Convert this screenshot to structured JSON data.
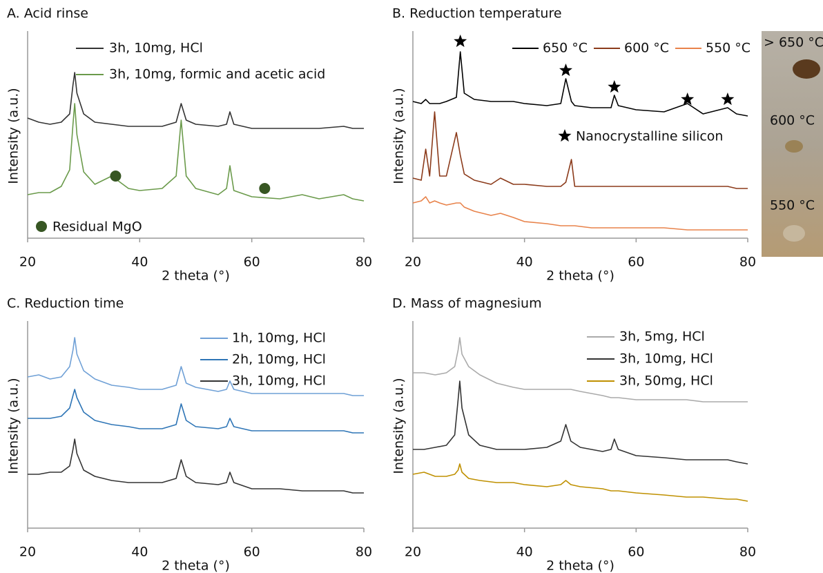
{
  "chart_data": [
    {
      "type": "line",
      "title": "A. Acid rinse",
      "x_label": "2 theta (°)",
      "y_label": "Intensity (a.u.)",
      "xlim": [
        20,
        80
      ],
      "xticks": [
        20,
        40,
        60,
        80
      ],
      "ylim": [
        0,
        100
      ],
      "legend": "top-center",
      "x": [
        20,
        22,
        24,
        26,
        27.5,
        28.1,
        28.4,
        28.8,
        30,
        32,
        35,
        38,
        40,
        44,
        46.5,
        47.4,
        48.3,
        50,
        54,
        55.5,
        56.1,
        56.8,
        60,
        65,
        69,
        72,
        76.4,
        78,
        80
      ],
      "series": [
        {
          "name": "3h, 10mg, HCl",
          "color": "#333333",
          "values": [
            58,
            56,
            55,
            56,
            60,
            74,
            80,
            70,
            60,
            56,
            55,
            54,
            54,
            54,
            56,
            65,
            57,
            55,
            54,
            55,
            61,
            55,
            53,
            53,
            53,
            53,
            54,
            53,
            53
          ]
        },
        {
          "name": "3h, 10mg, formic and acetic acid",
          "color": "#6a9a4a",
          "values": [
            21,
            22,
            22,
            25,
            33,
            55,
            65,
            50,
            32,
            26,
            30,
            24,
            23,
            24,
            30,
            57,
            30,
            24,
            21,
            24,
            35,
            23,
            20,
            19,
            21,
            19,
            21,
            19,
            18
          ]
        }
      ],
      "markers": {
        "label": "Residual MgO",
        "shape": "circle",
        "color": "#375623",
        "x": [
          35.7,
          62.3
        ],
        "y": [
          30,
          24
        ]
      }
    },
    {
      "type": "line",
      "title": "B. Reduction temperature",
      "x_label": "2 theta (°)",
      "y_label": "Intensity (a.u.)",
      "xlim": [
        20,
        80
      ],
      "xticks": [
        20,
        40,
        60,
        80
      ],
      "ylim": [
        0,
        100
      ],
      "legend": "top-right",
      "x": [
        20,
        21.5,
        22.3,
        23,
        23.9,
        24.8,
        26,
        27.8,
        28.5,
        29.2,
        31,
        34,
        35.7,
        38,
        40,
        44,
        46.5,
        47.4,
        48.4,
        49,
        52,
        55.5,
        56.1,
        56.8,
        60,
        65,
        69.2,
        72,
        76.4,
        78,
        80
      ],
      "series": [
        {
          "name": "650 °C",
          "color": "#000000",
          "values": [
            66,
            65,
            67,
            65,
            65,
            65,
            66,
            68,
            90,
            70,
            67,
            66,
            66,
            66,
            65,
            64,
            65,
            77,
            66,
            64,
            63,
            63,
            69,
            64,
            62,
            61,
            65,
            60,
            63,
            60,
            59
          ]
        },
        {
          "name": "600 °C",
          "color": "#8b3a1a",
          "values": [
            29,
            28,
            43,
            30,
            61,
            30,
            30,
            51,
            40,
            31,
            28,
            26,
            29,
            26,
            26,
            25,
            25,
            27,
            38,
            25,
            25,
            25,
            25,
            25,
            25,
            25,
            25,
            25,
            25,
            24,
            24
          ]
        },
        {
          "name": "550 °C",
          "color": "#e8824a",
          "values": [
            17,
            18,
            20,
            17,
            18,
            17,
            16,
            17,
            17,
            15,
            13,
            11,
            12,
            10,
            8,
            7,
            6,
            6,
            6,
            6,
            5,
            5,
            5,
            5,
            5,
            5,
            4,
            4,
            4,
            4,
            4
          ]
        }
      ],
      "markers": {
        "label": "Nanocrystalline silicon",
        "shape": "star",
        "color": "#000000",
        "x": [
          28.5,
          47.4,
          56.1,
          69.2,
          76.4
        ],
        "y": [
          95,
          81,
          73,
          67,
          67
        ]
      }
    },
    {
      "type": "line",
      "title": "C. Reduction time",
      "x_label": "2 theta (°)",
      "y_label": "Intensity (a.u.)",
      "xlim": [
        20,
        80
      ],
      "xticks": [
        20,
        40,
        60,
        80
      ],
      "ylim": [
        0,
        100
      ],
      "legend": "top-right",
      "x": [
        20,
        22,
        24,
        26,
        27.5,
        28.1,
        28.4,
        28.8,
        30,
        32,
        35,
        38,
        40,
        44,
        46.5,
        47.4,
        48.3,
        50,
        54,
        55.5,
        56.1,
        56.8,
        60,
        65,
        69,
        72,
        76.4,
        78,
        80
      ],
      "series": [
        {
          "name": "1h, 10mg, HCl",
          "color": "#6fa0d6",
          "values": [
            73,
            74,
            72,
            73,
            78,
            86,
            92,
            84,
            76,
            72,
            69,
            68,
            67,
            67,
            69,
            78,
            70,
            68,
            66,
            67,
            71,
            67,
            65,
            65,
            65,
            65,
            65,
            64,
            64
          ]
        },
        {
          "name": "2h, 10mg, HCl",
          "color": "#2e75b6",
          "values": [
            53,
            53,
            53,
            54,
            58,
            64,
            67,
            63,
            56,
            52,
            50,
            49,
            48,
            48,
            50,
            60,
            52,
            49,
            48,
            49,
            53,
            49,
            47,
            47,
            47,
            47,
            47,
            46,
            46
          ]
        },
        {
          "name": "3h, 10mg, HCl",
          "color": "#333333",
          "values": [
            26,
            26,
            27,
            27,
            30,
            38,
            43,
            36,
            28,
            25,
            23,
            22,
            22,
            22,
            24,
            33,
            25,
            22,
            21,
            22,
            27,
            22,
            19,
            19,
            18,
            18,
            18,
            17,
            17
          ]
        }
      ]
    },
    {
      "type": "line",
      "title": "D. Mass of magnesium",
      "x_label": "2 theta (°)",
      "y_label": "Intensity (a.u.)",
      "xlim": [
        20,
        80
      ],
      "xticks": [
        20,
        40,
        60,
        80
      ],
      "ylim": [
        0,
        100
      ],
      "legend": "top-right",
      "x": [
        20,
        22,
        24,
        26,
        27.5,
        28.1,
        28.4,
        28.8,
        30,
        32,
        35,
        38,
        40,
        44,
        46.5,
        47.4,
        48.3,
        50,
        54,
        55.5,
        56.1,
        56.8,
        60,
        65,
        69,
        72,
        76.4,
        78,
        80
      ],
      "series": [
        {
          "name": "3h, 5mg, HCl",
          "color": "#aaaaaa",
          "values": [
            75,
            75,
            74,
            75,
            78,
            86,
            92,
            84,
            78,
            74,
            70,
            68,
            67,
            67,
            67,
            67,
            67,
            66,
            64,
            63,
            63,
            63,
            62,
            62,
            62,
            61,
            61,
            61,
            61
          ]
        },
        {
          "name": "3h, 10mg, HCl",
          "color": "#333333",
          "values": [
            38,
            38,
            39,
            40,
            45,
            62,
            71,
            58,
            45,
            40,
            38,
            38,
            38,
            39,
            42,
            50,
            42,
            39,
            37,
            38,
            43,
            38,
            35,
            34,
            33,
            33,
            33,
            32,
            31
          ]
        },
        {
          "name": "3h, 50mg, HCl",
          "color": "#bf9000",
          "values": [
            26,
            27,
            25,
            25,
            26,
            28,
            31,
            27,
            24,
            23,
            22,
            22,
            21,
            20,
            21,
            23,
            21,
            20,
            19,
            18,
            18,
            18,
            17,
            16,
            15,
            15,
            14,
            14,
            13
          ]
        }
      ]
    }
  ],
  "photo": {
    "labels": [
      "> 650 °C",
      "600 °C",
      "550 °C"
    ]
  }
}
